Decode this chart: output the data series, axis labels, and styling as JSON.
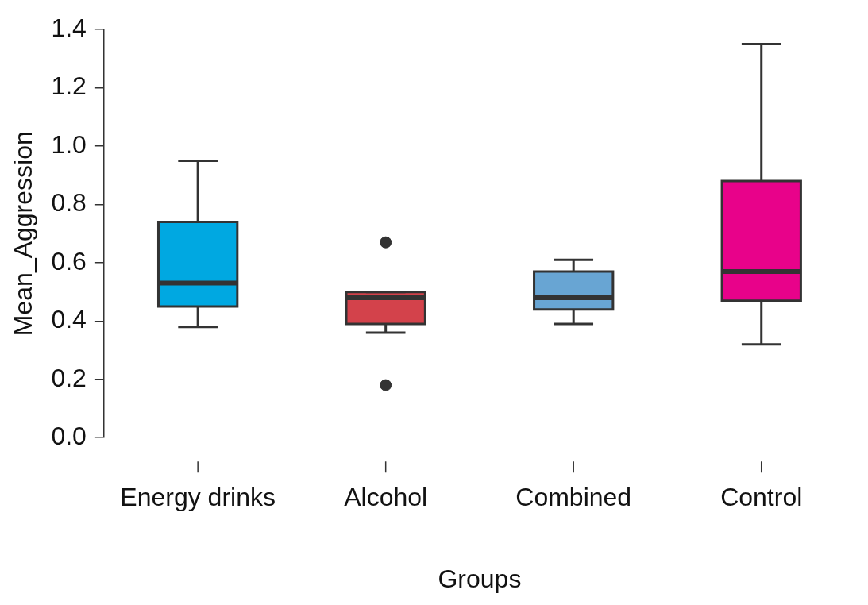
{
  "chart_data": {
    "type": "box",
    "xlabel": "Groups",
    "ylabel": "Mean_Aggression",
    "categories": [
      "Energy drinks",
      "Alcohol",
      "Combined",
      "Control"
    ],
    "colors": [
      "#00a8e1",
      "#d3424b",
      "#68a5d3",
      "#e8028a"
    ],
    "boxes": [
      {
        "low": 0.38,
        "q1": 0.45,
        "median": 0.53,
        "q3": 0.74,
        "high": 0.95
      },
      {
        "low": 0.36,
        "q1": 0.39,
        "median": 0.48,
        "q3": 0.5,
        "high": 0.5,
        "outliers": [
          0.67,
          0.18
        ]
      },
      {
        "low": 0.39,
        "q1": 0.44,
        "median": 0.48,
        "q3": 0.57,
        "high": 0.61
      },
      {
        "low": 0.32,
        "q1": 0.47,
        "median": 0.57,
        "q3": 0.88,
        "high": 1.35
      }
    ],
    "ylim": [
      0,
      1.4
    ],
    "yticks": [
      {
        "value": 0,
        "label": "0.0"
      },
      {
        "value": 0.2,
        "label": "0.2"
      },
      {
        "value": 0.4,
        "label": "0.4"
      },
      {
        "value": 0.6,
        "label": "0.6"
      },
      {
        "value": 0.8,
        "label": "0.8"
      },
      {
        "value": 1,
        "label": "1.0"
      },
      {
        "value": 1.2,
        "label": "1.2"
      },
      {
        "value": 1.4,
        "label": "1.4"
      }
    ],
    "legend": false
  }
}
